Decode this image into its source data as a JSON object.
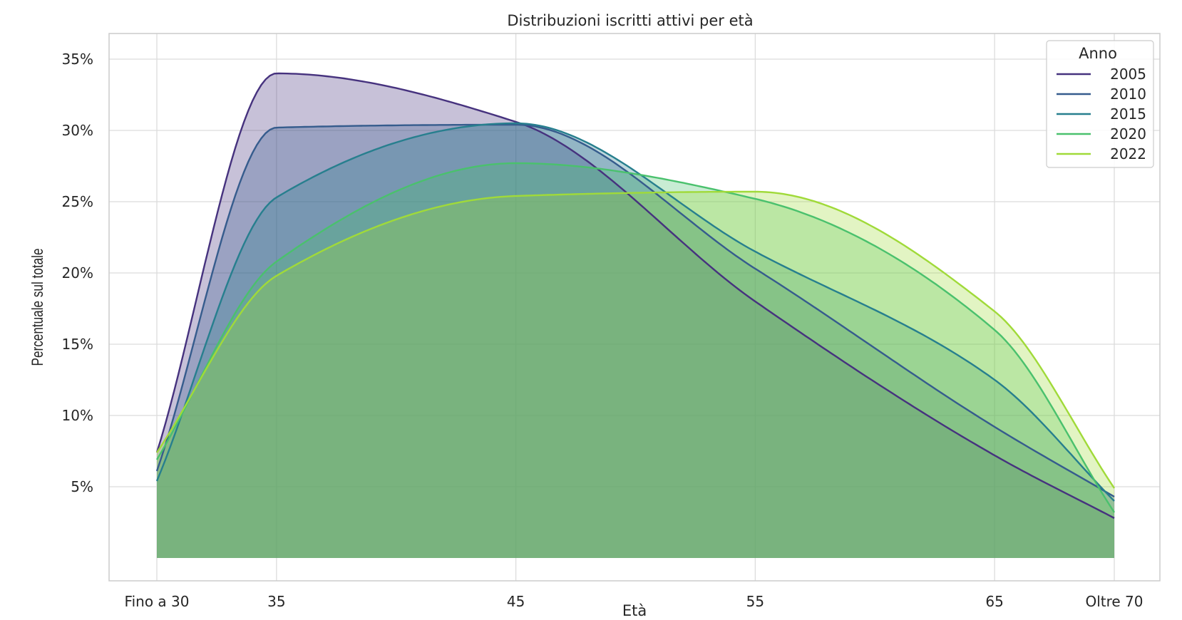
{
  "chart_data": {
    "type": "area",
    "title": "Distribuzioni iscritti attivi per età",
    "xlabel": "Età",
    "ylabel": "Percentuale sul totale",
    "categories": [
      "Fino a 30",
      "35",
      "45",
      "55",
      "65",
      "Oltre 70"
    ],
    "x": [
      30,
      35,
      45,
      55,
      65,
      70
    ],
    "ylim": [
      -1.6,
      36.8
    ],
    "yticks": [
      5,
      10,
      15,
      20,
      25,
      30,
      35
    ],
    "ytick_labels": [
      "5%",
      "10%",
      "15%",
      "20%",
      "25%",
      "30%",
      "35%"
    ],
    "grid": true,
    "legend": {
      "title": "Anno",
      "placement": "top-right"
    },
    "series": [
      {
        "name": "2005",
        "color": "#46327e",
        "values": [
          7.4,
          34.0,
          30.6,
          18.0,
          7.2,
          2.8
        ]
      },
      {
        "name": "2010",
        "color": "#365c8d",
        "values": [
          6.1,
          30.2,
          30.4,
          20.3,
          9.2,
          4.3
        ]
      },
      {
        "name": "2015",
        "color": "#277f8e",
        "values": [
          5.4,
          25.3,
          30.5,
          21.5,
          12.5,
          4.0
        ]
      },
      {
        "name": "2020",
        "color": "#4ac16d",
        "values": [
          6.9,
          20.8,
          27.7,
          25.2,
          16.0,
          3.2
        ]
      },
      {
        "name": "2022",
        "color": "#a0da39",
        "values": [
          7.4,
          19.8,
          25.4,
          25.7,
          17.3,
          4.9
        ]
      }
    ]
  }
}
